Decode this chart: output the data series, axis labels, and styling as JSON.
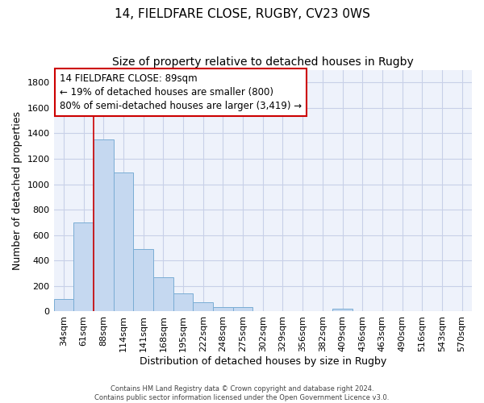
{
  "title": "14, FIELDFARE CLOSE, RUGBY, CV23 0WS",
  "subtitle": "Size of property relative to detached houses in Rugby",
  "xlabel": "Distribution of detached houses by size in Rugby",
  "ylabel": "Number of detached properties",
  "categories": [
    "34sqm",
    "61sqm",
    "88sqm",
    "114sqm",
    "141sqm",
    "168sqm",
    "195sqm",
    "222sqm",
    "248sqm",
    "275sqm",
    "302sqm",
    "329sqm",
    "356sqm",
    "382sqm",
    "409sqm",
    "436sqm",
    "463sqm",
    "490sqm",
    "516sqm",
    "543sqm",
    "570sqm"
  ],
  "values": [
    100,
    700,
    1350,
    1095,
    490,
    270,
    140,
    70,
    35,
    35,
    0,
    0,
    0,
    0,
    20,
    0,
    0,
    0,
    0,
    0,
    0
  ],
  "bar_color": "#c5d8f0",
  "bar_edgecolor": "#7aadd4",
  "ylim": [
    0,
    1900
  ],
  "yticks": [
    0,
    200,
    400,
    600,
    800,
    1000,
    1200,
    1400,
    1600,
    1800
  ],
  "vline_x_index": 2,
  "vline_color": "#cc0000",
  "annotation_line1": "14 FIELDFARE CLOSE: 89sqm",
  "annotation_line2": "← 19% of detached houses are smaller (800)",
  "annotation_line3": "80% of semi-detached houses are larger (3,419) →",
  "footer": "Contains HM Land Registry data © Crown copyright and database right 2024.\nContains public sector information licensed under the Open Government Licence v3.0.",
  "bg_color": "#eef2fb",
  "grid_color": "#c8d0e8",
  "title_fontsize": 11,
  "subtitle_fontsize": 10,
  "axis_label_fontsize": 9,
  "tick_fontsize": 8,
  "annotation_fontsize": 8.5
}
